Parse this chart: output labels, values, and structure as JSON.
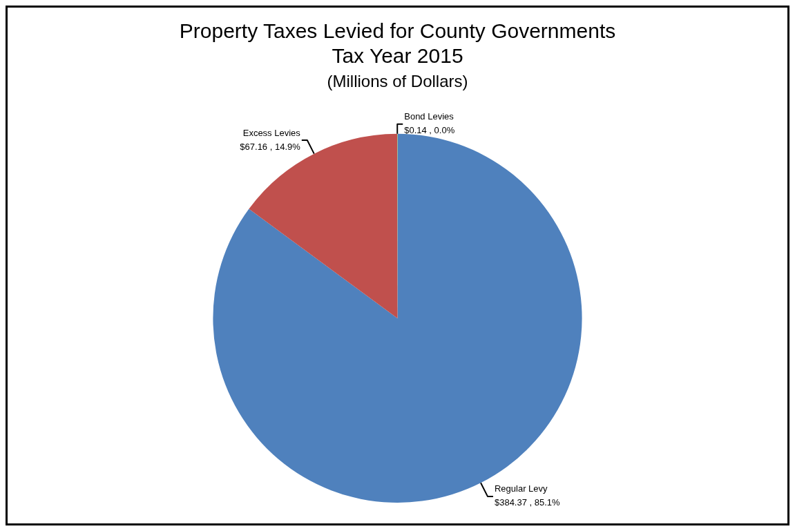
{
  "chart_data": {
    "type": "pie",
    "title": "Property Taxes Levied for County Governments\nTax Year 2015",
    "subtitle": "(Millions of Dollars)",
    "categories": [
      "Regular Levy",
      "Excess Levies",
      "Bond Levies"
    ],
    "values": [
      384.37,
      67.16,
      0.14
    ],
    "colors": [
      "#4f81bd",
      "#c0504d",
      "#9bbb59"
    ],
    "value_labels": [
      "$384.37 , 85.1%",
      "$67.16 , 14.9%",
      "$0.14 , 0.0%"
    ],
    "legend": false
  }
}
